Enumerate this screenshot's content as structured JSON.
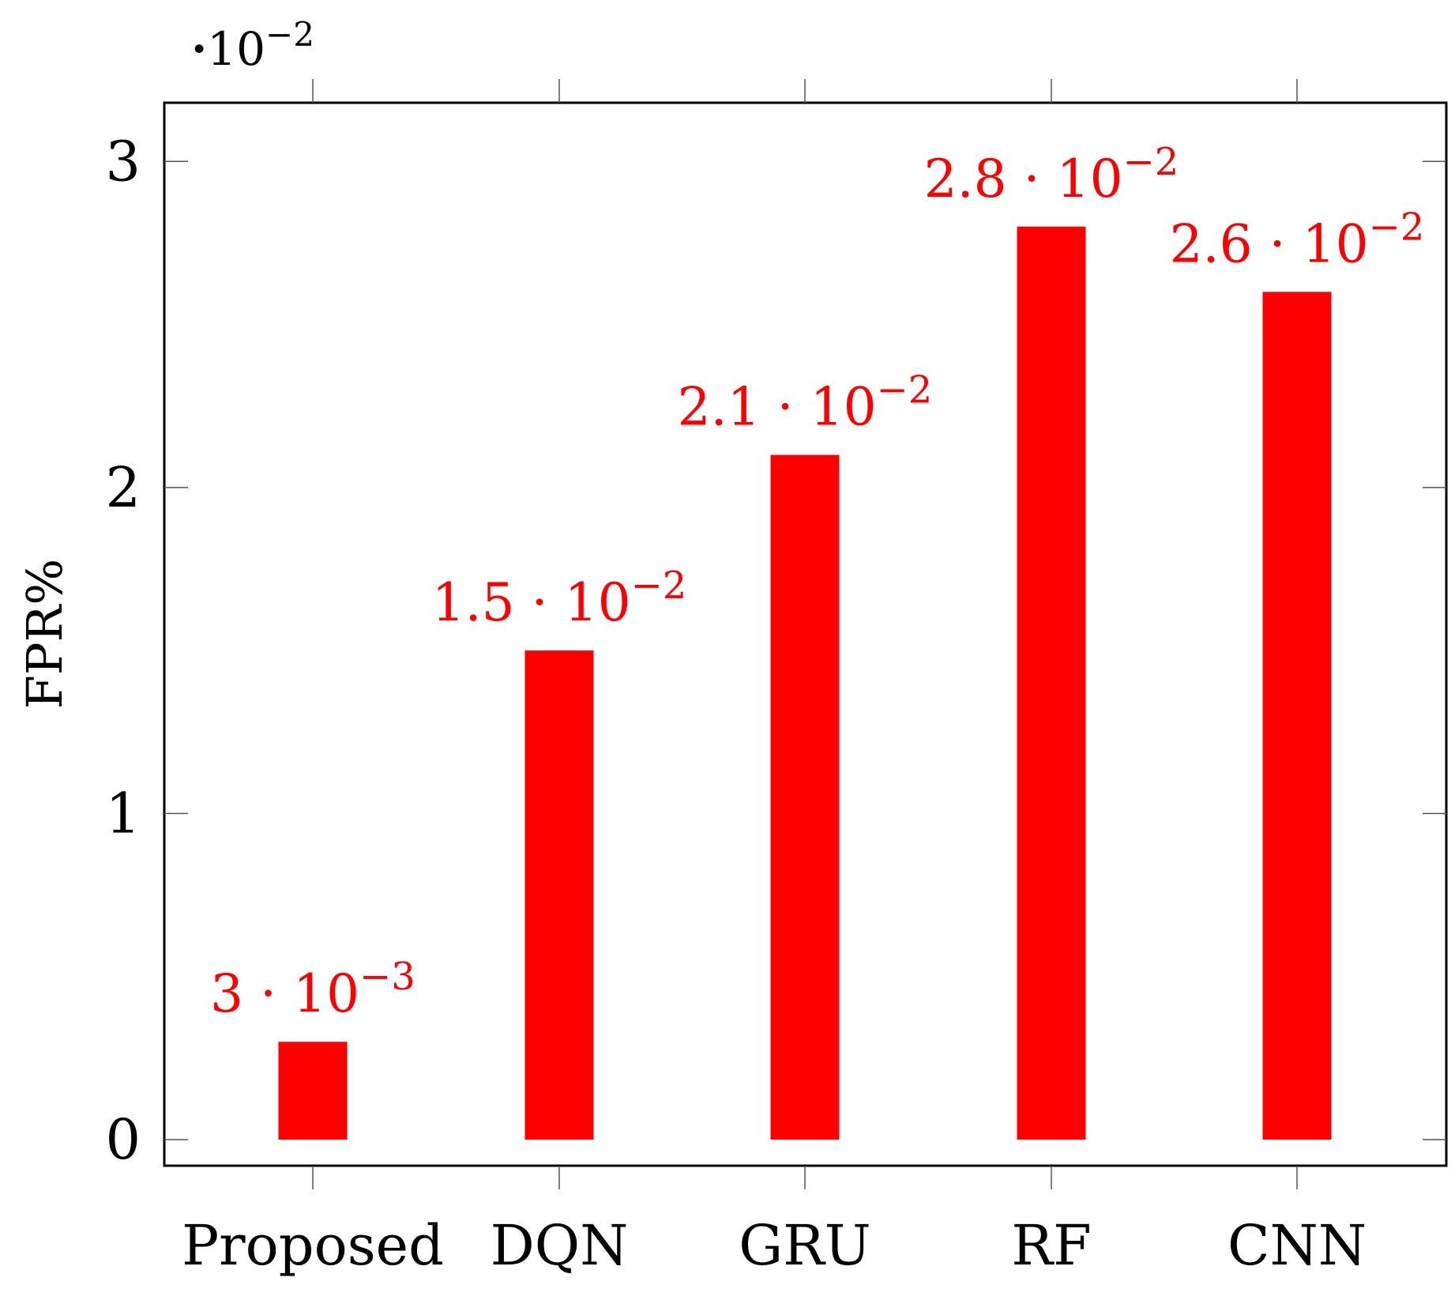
{
  "chart_data": {
    "type": "bar",
    "categories": [
      "Proposed",
      "DQN",
      "GRU",
      "RF",
      "CNN"
    ],
    "values": [
      0.3,
      1.5,
      2.1,
      2.8,
      2.6
    ],
    "value_labels": [
      {
        "mantissa": "3",
        "exponent": "−3"
      },
      {
        "mantissa": "1.5",
        "exponent": "−2"
      },
      {
        "mantissa": "2.1",
        "exponent": "−2"
      },
      {
        "mantissa": "2.8",
        "exponent": "−2"
      },
      {
        "mantissa": "2.6",
        "exponent": "−2"
      }
    ],
    "ylabel": "FPR%",
    "xlabel": "",
    "title": "",
    "ylim": [
      -0.08,
      3.18
    ],
    "yticks": [
      0,
      1,
      2,
      3
    ],
    "scale_base": "10",
    "scale_exponent": "−2",
    "grid": false,
    "color": "#ff0000"
  }
}
